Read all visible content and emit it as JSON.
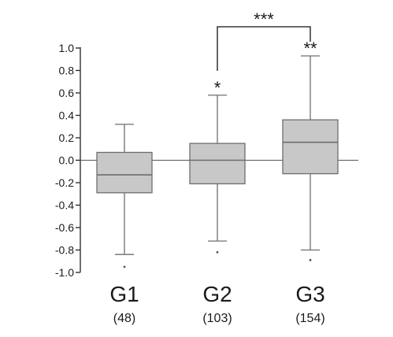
{
  "chart_data": {
    "type": "box",
    "ylim": [
      -1.0,
      1.0
    ],
    "y_ticks": [
      "1.0",
      "0.8",
      "0.6",
      "0.4",
      "0.2",
      "0.0",
      "-0.2",
      "-0.4",
      "-0.6",
      "-0.8",
      "-1.0"
    ],
    "y_tick_values": [
      1.0,
      0.8,
      0.6,
      0.4,
      0.2,
      0.0,
      -0.2,
      -0.4,
      -0.6,
      -0.8,
      -1.0
    ],
    "reference_line": 0.0,
    "groups": [
      {
        "label": "G1",
        "n_label": "(48)",
        "whisker_low": -0.84,
        "q1": -0.29,
        "median": -0.13,
        "q3": 0.07,
        "whisker_high": 0.32,
        "outliers": [
          -0.95
        ],
        "significance": ""
      },
      {
        "label": "G2",
        "n_label": "(103)",
        "whisker_low": -0.72,
        "q1": -0.21,
        "median": 0.0,
        "q3": 0.15,
        "whisker_high": 0.58,
        "outliers": [
          -0.82
        ],
        "significance": "*"
      },
      {
        "label": "G3",
        "n_label": "(154)",
        "whisker_low": -0.8,
        "q1": -0.12,
        "median": 0.16,
        "q3": 0.36,
        "whisker_high": 0.93,
        "outliers": [
          -0.89
        ],
        "significance": "**"
      }
    ],
    "comparison": {
      "from": "G2",
      "to": "G3",
      "label": "***"
    },
    "colors": {
      "box_fill": "#c8c8c8",
      "box_stroke": "#6e6e6e",
      "axis": "#222222",
      "zero_line": "#555555"
    }
  }
}
